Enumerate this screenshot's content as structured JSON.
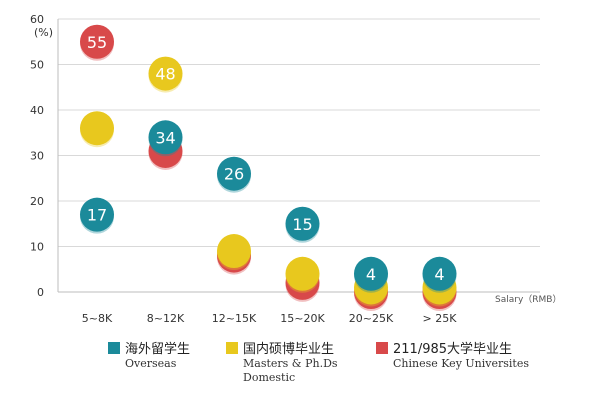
{
  "chart_data": {
    "type": "scatter",
    "title": "",
    "yunit": "(%)",
    "xlabel": "Salary（RMB）",
    "ylabel": "",
    "ylim": [
      0,
      60
    ],
    "yticks": [
      0,
      10,
      20,
      30,
      40,
      50,
      60
    ],
    "grid": true,
    "legend_position": "bottom",
    "categories": [
      "5~8K",
      "8~12K",
      "12~15K",
      "15~20K",
      "20~25K",
      "> 25K"
    ],
    "series": [
      {
        "name": "海外留学生",
        "name_en": "Overseas",
        "color": "#1b8a9a",
        "values": [
          17,
          34,
          26,
          15,
          4,
          4
        ],
        "labels": [
          "17",
          "34",
          "26",
          "15",
          "4",
          "4"
        ]
      },
      {
        "name": "国内硕博毕业生",
        "name_en": "Masters & Ph.Ds Domestic",
        "name_en_lines": [
          "Masters & Ph.Ds",
          "Domestic"
        ],
        "color": "#e8c81e",
        "values": [
          36,
          48,
          9,
          4,
          1,
          1
        ],
        "labels": [
          "",
          "48",
          "",
          "",
          "",
          ""
        ]
      },
      {
        "name": "211/985大学毕业生",
        "name_en": "Chinese Key Universites",
        "color": "#d8494a",
        "values": [
          55,
          31,
          8,
          2,
          0,
          0
        ],
        "labels": [
          "55",
          "",
          "",
          "",
          "",
          ""
        ]
      }
    ]
  }
}
